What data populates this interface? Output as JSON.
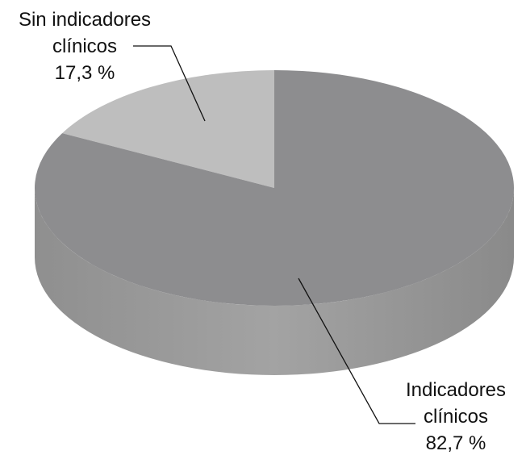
{
  "chart_data": {
    "type": "pie",
    "categories": [
      "Sin indicadores clínicos",
      "Indicadores clínicos"
    ],
    "values": [
      17.3,
      82.7
    ],
    "value_labels": [
      "17,3 %",
      "82,7 %"
    ],
    "colors": [
      "#bebebe",
      "#8d8d8f"
    ]
  }
}
